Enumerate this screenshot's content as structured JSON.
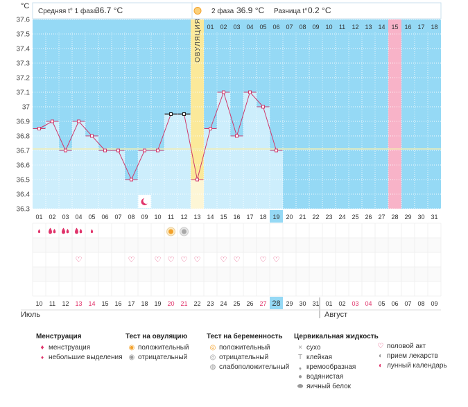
{
  "header": {
    "unit": "°C",
    "phase1_label": "Средняя t° 1 фаза",
    "phase1_value": "36.7 °C",
    "phase2_label": "2 фаза",
    "phase2_value": "36.9 °C",
    "diff_label": "Разница t°",
    "diff_value": "0.2 °C",
    "ovulation_label": "ОВУЛЯЦИЯ"
  },
  "colors": {
    "sky": "#95d9f5",
    "bar": "#cdeefc",
    "ovulation": "#fbe99a",
    "ovulation_light": "#fdf6d6",
    "expected_period": "#f8b3c8",
    "line": "#ce3a6c",
    "cover_line": "#f4eeb0"
  },
  "chart_data": {
    "type": "line",
    "ylim": [
      36.3,
      37.6
    ],
    "y_ticks": [
      "37.6",
      "37.5",
      "37.4",
      "37.3",
      "37.2",
      "37.1",
      "37",
      "36.9",
      "36.8",
      "36.7",
      "36.6",
      "36.5",
      "36.4",
      "36.3"
    ],
    "cycle_days": [
      "01",
      "02",
      "03",
      "04",
      "05",
      "06",
      "07",
      "08",
      "09",
      "10",
      "11",
      "12",
      "13",
      "14",
      "15",
      "16",
      "17",
      "18",
      "19",
      "20",
      "21",
      "22",
      "23",
      "24",
      "25",
      "26",
      "27",
      "28",
      "29",
      "30",
      "31"
    ],
    "post_ovulation_labels": [
      "01",
      "02",
      "03",
      "04",
      "05",
      "06",
      "07",
      "08",
      "09",
      "10",
      "11",
      "12",
      "13",
      "14",
      "15",
      "16",
      "17",
      "18"
    ],
    "temperatures": [
      36.85,
      36.9,
      36.7,
      36.9,
      36.8,
      36.7,
      36.7,
      36.5,
      36.7,
      36.7,
      36.95,
      36.95,
      36.5,
      36.85,
      37.1,
      36.8,
      37.1,
      37.0,
      36.7
    ],
    "cover_line_value": 36.71,
    "ovulation_day": 13,
    "expected_period_day": 28,
    "current_day": "19",
    "calendar_dates": [
      "10",
      "11",
      "12",
      "13",
      "14",
      "15",
      "16",
      "17",
      "18",
      "19",
      "20",
      "21",
      "22",
      "23",
      "24",
      "25",
      "26",
      "27",
      "28",
      "29",
      "30",
      "31",
      "01",
      "02",
      "03",
      "04",
      "05",
      "06",
      "07",
      "08",
      "09"
    ],
    "red_dates_index": [
      3,
      4,
      10,
      11,
      17,
      24,
      25
    ],
    "current_date_index": 18,
    "month_1": "Июль",
    "month_2": "Август"
  },
  "markers": {
    "menstruation_days": [
      1,
      2,
      3,
      4,
      5
    ],
    "menstruation_strength": [
      "small",
      "large",
      "large",
      "large",
      "small"
    ],
    "ovulation_positive_day": 11,
    "ovulation_negative_day": 12,
    "intercourse_days": [
      4,
      8,
      10,
      11,
      12,
      13,
      15,
      16,
      18,
      19
    ],
    "lunar_day": 9
  },
  "legend": {
    "menstruation": {
      "title": "Менструация",
      "items": [
        "менструация",
        "небольшие выделения"
      ]
    },
    "ovulation_test": {
      "title": "Тест на овуляцию",
      "items": [
        "положительный",
        "отрицательный"
      ]
    },
    "pregnancy_test": {
      "title": "Тест на беременность",
      "items": [
        "положительный",
        "отрицательный",
        "слабоположительный"
      ]
    },
    "cervical": {
      "title": "Цервикальная жидкость",
      "items": [
        "сухо",
        "клейкая",
        "кремообразная",
        "водянистая",
        "яичный белок"
      ]
    },
    "other": {
      "items": [
        "половой акт",
        "прием лекарств",
        "лунный календарь"
      ]
    }
  }
}
